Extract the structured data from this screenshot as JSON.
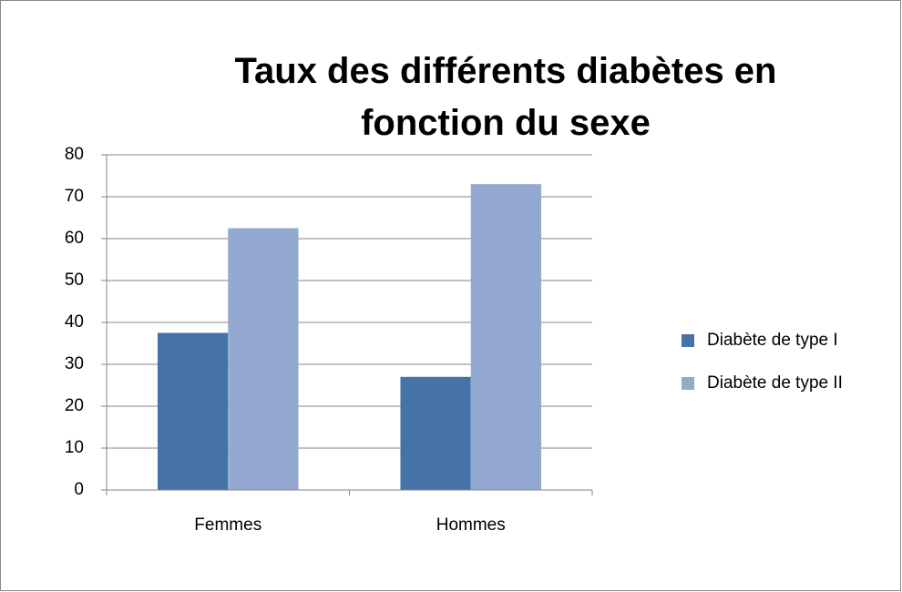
{
  "chart_data": {
    "type": "bar",
    "title": "Taux des différents diabètes en fonction du sexe",
    "categories": [
      "Femmes",
      "Hommes"
    ],
    "series": [
      {
        "name": "Diabète de type I",
        "color": "#4572a7",
        "values": [
          37.5,
          27
        ]
      },
      {
        "name": "Diabète de type II",
        "color": "#93a9d1",
        "values": [
          62.5,
          73
        ]
      }
    ],
    "ylim": [
      0,
      80
    ],
    "yticks": [
      0,
      10,
      20,
      30,
      40,
      50,
      60,
      70,
      80
    ],
    "grid": true,
    "legend": "right"
  }
}
